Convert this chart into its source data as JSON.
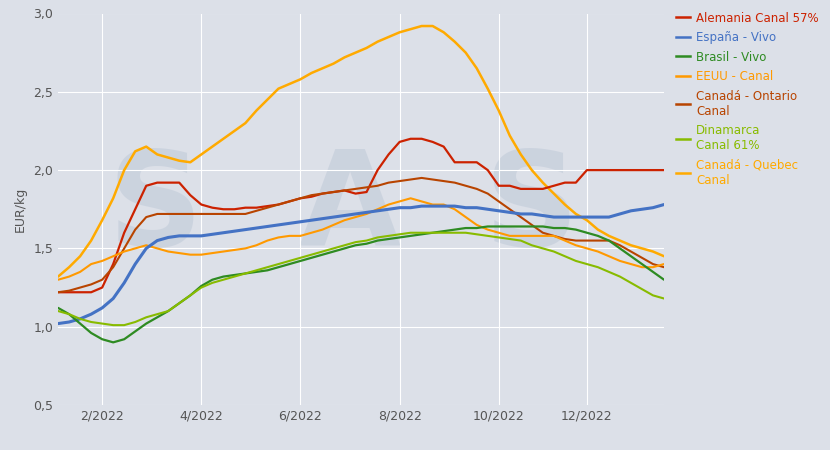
{
  "ylabel": "EUR/kg",
  "ylim": [
    0.5,
    3.0
  ],
  "yticks": [
    0.5,
    1.0,
    1.5,
    2.0,
    2.5,
    3.0
  ],
  "background_color": "#dce0e8",
  "plot_bg_color": "#dce0e8",
  "legend_labels": [
    "Alemania Canal 57%",
    "España - Vivo",
    "Brasil - Vivo",
    "EEUU - Canal",
    "Canadá - Ontario\nCanal",
    "Dinamarca\nCanal 61%",
    "Canadá - Quebec\nCanal"
  ],
  "legend_colors": [
    "#cc2200",
    "#4472c4",
    "#2e8b22",
    "#ff9900",
    "#b84400",
    "#88bb00",
    "#ffaa00"
  ],
  "xtick_labels": [
    "2/2022",
    "4/2022",
    "6/2022",
    "8/2022",
    "10/2022",
    "12/2022"
  ],
  "xtick_positions": [
    4,
    13,
    22,
    31,
    40,
    48
  ],
  "n_points": 56,
  "series": {
    "alemania": {
      "color": "#cc2200",
      "lw": 1.6,
      "data": [
        1.22,
        1.22,
        1.22,
        1.22,
        1.25,
        1.4,
        1.6,
        1.75,
        1.9,
        1.92,
        1.92,
        1.92,
        1.84,
        1.78,
        1.76,
        1.75,
        1.75,
        1.76,
        1.76,
        1.77,
        1.78,
        1.8,
        1.82,
        1.83,
        1.85,
        1.86,
        1.87,
        1.85,
        1.86,
        2.0,
        2.1,
        2.18,
        2.2,
        2.2,
        2.18,
        2.15,
        2.05,
        2.05,
        2.05,
        2.0,
        1.9,
        1.9,
        1.88,
        1.88,
        1.88,
        1.9,
        1.92,
        1.92,
        2.0,
        2.0,
        2.0,
        2.0,
        2.0,
        2.0,
        2.0,
        2.0
      ]
    },
    "espana": {
      "color": "#4472c4",
      "lw": 2.2,
      "data": [
        1.02,
        1.03,
        1.05,
        1.08,
        1.12,
        1.18,
        1.28,
        1.4,
        1.5,
        1.55,
        1.57,
        1.58,
        1.58,
        1.58,
        1.59,
        1.6,
        1.61,
        1.62,
        1.63,
        1.64,
        1.65,
        1.66,
        1.67,
        1.68,
        1.69,
        1.7,
        1.71,
        1.72,
        1.73,
        1.74,
        1.75,
        1.76,
        1.76,
        1.77,
        1.77,
        1.77,
        1.77,
        1.76,
        1.76,
        1.75,
        1.74,
        1.73,
        1.72,
        1.72,
        1.71,
        1.7,
        1.7,
        1.7,
        1.7,
        1.7,
        1.7,
        1.72,
        1.74,
        1.75,
        1.76,
        1.78
      ]
    },
    "brasil": {
      "color": "#2e8b22",
      "lw": 1.6,
      "data": [
        1.12,
        1.08,
        1.02,
        0.96,
        0.92,
        0.9,
        0.92,
        0.97,
        1.02,
        1.06,
        1.1,
        1.15,
        1.2,
        1.26,
        1.3,
        1.32,
        1.33,
        1.34,
        1.35,
        1.36,
        1.38,
        1.4,
        1.42,
        1.44,
        1.46,
        1.48,
        1.5,
        1.52,
        1.53,
        1.55,
        1.56,
        1.57,
        1.58,
        1.59,
        1.6,
        1.61,
        1.62,
        1.63,
        1.63,
        1.64,
        1.64,
        1.64,
        1.64,
        1.64,
        1.64,
        1.63,
        1.63,
        1.62,
        1.6,
        1.58,
        1.55,
        1.5,
        1.45,
        1.4,
        1.35,
        1.3
      ]
    },
    "eeuu": {
      "color": "#ff9900",
      "lw": 1.5,
      "data": [
        1.3,
        1.32,
        1.35,
        1.4,
        1.42,
        1.45,
        1.48,
        1.5,
        1.52,
        1.5,
        1.48,
        1.47,
        1.46,
        1.46,
        1.47,
        1.48,
        1.49,
        1.5,
        1.52,
        1.55,
        1.57,
        1.58,
        1.58,
        1.6,
        1.62,
        1.65,
        1.68,
        1.7,
        1.72,
        1.75,
        1.78,
        1.8,
        1.82,
        1.8,
        1.78,
        1.78,
        1.75,
        1.7,
        1.65,
        1.62,
        1.6,
        1.58,
        1.58,
        1.58,
        1.58,
        1.58,
        1.55,
        1.52,
        1.5,
        1.48,
        1.45,
        1.42,
        1.4,
        1.38,
        1.38,
        1.4
      ]
    },
    "canada_ontario": {
      "color": "#b84400",
      "lw": 1.5,
      "data": [
        1.22,
        1.23,
        1.25,
        1.27,
        1.3,
        1.38,
        1.5,
        1.62,
        1.7,
        1.72,
        1.72,
        1.72,
        1.72,
        1.72,
        1.72,
        1.72,
        1.72,
        1.72,
        1.74,
        1.76,
        1.78,
        1.8,
        1.82,
        1.84,
        1.85,
        1.86,
        1.87,
        1.88,
        1.89,
        1.9,
        1.92,
        1.93,
        1.94,
        1.95,
        1.94,
        1.93,
        1.92,
        1.9,
        1.88,
        1.85,
        1.8,
        1.75,
        1.7,
        1.65,
        1.6,
        1.58,
        1.56,
        1.55,
        1.55,
        1.55,
        1.55,
        1.52,
        1.48,
        1.44,
        1.4,
        1.38
      ]
    },
    "dinamarca": {
      "color": "#88bb00",
      "lw": 1.5,
      "data": [
        1.1,
        1.08,
        1.05,
        1.03,
        1.02,
        1.01,
        1.01,
        1.03,
        1.06,
        1.08,
        1.1,
        1.15,
        1.2,
        1.25,
        1.28,
        1.3,
        1.32,
        1.34,
        1.36,
        1.38,
        1.4,
        1.42,
        1.44,
        1.46,
        1.48,
        1.5,
        1.52,
        1.54,
        1.55,
        1.57,
        1.58,
        1.59,
        1.6,
        1.6,
        1.6,
        1.6,
        1.6,
        1.6,
        1.59,
        1.58,
        1.57,
        1.56,
        1.55,
        1.52,
        1.5,
        1.48,
        1.45,
        1.42,
        1.4,
        1.38,
        1.35,
        1.32,
        1.28,
        1.24,
        1.2,
        1.18
      ]
    },
    "canada_quebec": {
      "color": "#ffaa00",
      "lw": 1.8,
      "data": [
        1.32,
        1.38,
        1.45,
        1.55,
        1.68,
        1.82,
        2.0,
        2.12,
        2.15,
        2.1,
        2.08,
        2.06,
        2.05,
        2.1,
        2.15,
        2.2,
        2.25,
        2.3,
        2.38,
        2.45,
        2.52,
        2.55,
        2.58,
        2.62,
        2.65,
        2.68,
        2.72,
        2.75,
        2.78,
        2.82,
        2.85,
        2.88,
        2.9,
        2.92,
        2.92,
        2.88,
        2.82,
        2.75,
        2.65,
        2.52,
        2.38,
        2.22,
        2.1,
        2.0,
        1.92,
        1.85,
        1.78,
        1.72,
        1.68,
        1.62,
        1.58,
        1.55,
        1.52,
        1.5,
        1.48,
        1.45
      ]
    }
  }
}
